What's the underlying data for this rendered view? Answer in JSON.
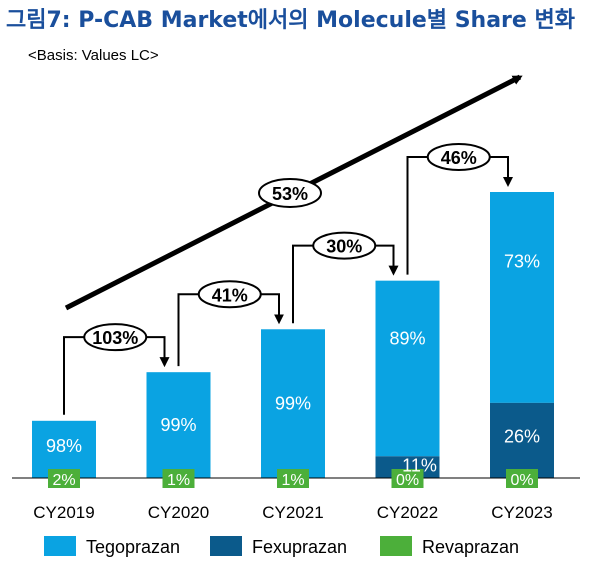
{
  "chart_data": {
    "type": "bar",
    "stacked": true,
    "title": "그림7: P-CAB Market에서의 Molecule별 Share 변화",
    "subtitle": "<Basis: Values LC>",
    "categories": [
      "CY2019",
      "CY2020",
      "CY2021",
      "CY2022",
      "CY2023"
    ],
    "totals_relative": [
      0.2,
      0.37,
      0.52,
      0.69,
      1.0
    ],
    "series": [
      {
        "name": "Revaprazan",
        "color": "#4caf3a",
        "share_labels": [
          "2%",
          "1%",
          "1%",
          "0%",
          "0%"
        ],
        "shares": [
          2,
          1,
          1,
          0,
          0
        ]
      },
      {
        "name": "Fexuprazan",
        "color": "#0b5a8b",
        "share_labels": [
          "",
          "",
          "",
          "11%",
          "26%"
        ],
        "shares": [
          0,
          0,
          0,
          11,
          26
        ]
      },
      {
        "name": "Tegoprazan",
        "color": "#0aa3e2",
        "share_labels": [
          "98%",
          "99%",
          "99%",
          "89%",
          "73%"
        ],
        "shares": [
          98,
          99,
          99,
          89,
          73
        ]
      }
    ],
    "growth_labels": [
      "103%",
      "41%",
      "30%",
      "46%"
    ],
    "overall_growth_label": "53%",
    "legend": [
      {
        "name": "Tegoprazan",
        "color": "#0aa3e2"
      },
      {
        "name": "Fexuprazan",
        "color": "#0b5a8b"
      },
      {
        "name": "Revaprazan",
        "color": "#4caf3a"
      }
    ],
    "legend_position": "bottom",
    "title_color": "#1a4f9c"
  }
}
